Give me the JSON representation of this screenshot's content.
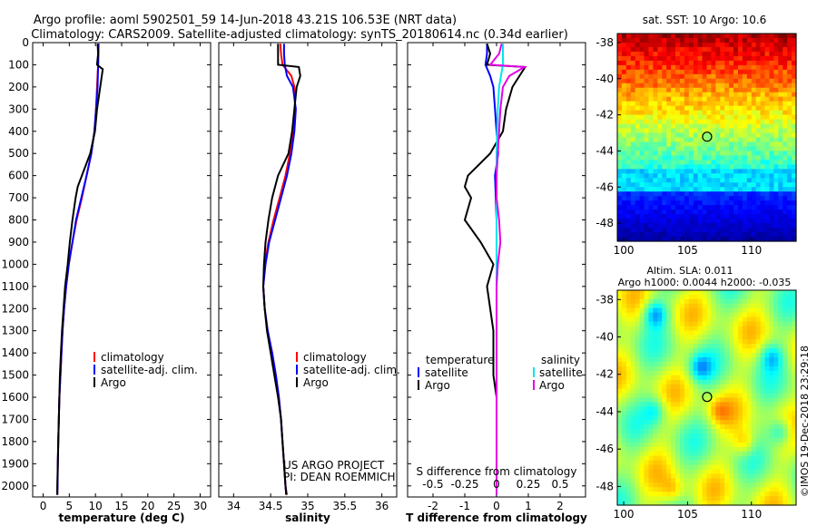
{
  "header": {
    "title_line1": "Argo profile: aoml 5902501_59 14-Jun-2018 43.21S 106.53E (NRT data)",
    "title_line2": "Climatology: CARS2009. Satellite-adjusted climatology: synTS_20180614.nc (0.34d earlier)"
  },
  "colors": {
    "climatology": "#ff0000",
    "satellite": "#0000ff",
    "argo": "#000000",
    "sat_salinity": "#00e5ee",
    "argo_salinity": "#e600e6"
  },
  "chart_data": [
    {
      "type": "line",
      "xlabel": "temperature (deg C)",
      "ylabel": "",
      "xlim": [
        -2,
        32
      ],
      "ylim": [
        2050,
        0
      ],
      "x_ticks": [
        "0",
        "5",
        "10",
        "15",
        "20",
        "25",
        "30"
      ],
      "y_ticks": [
        "0",
        "100",
        "200",
        "300",
        "400",
        "500",
        "600",
        "700",
        "800",
        "900",
        "1000",
        "1100",
        "1200",
        "1300",
        "1400",
        "1500",
        "1600",
        "1700",
        "1800",
        "1900",
        "2000"
      ],
      "legend": [
        "climatology",
        "satellite-adj. clim.",
        "Argo"
      ],
      "series": [
        {
          "name": "climatology",
          "depth": [
            5,
            100,
            200,
            300,
            400,
            500,
            600,
            700,
            800,
            900,
            1000,
            1100,
            1200,
            1300,
            1400,
            1500,
            1600,
            1700,
            1800,
            1900,
            2000,
            2040
          ],
          "values": [
            10.6,
            10.5,
            10.3,
            10.1,
            9.8,
            9.2,
            8.3,
            7.4,
            6.4,
            5.6,
            4.9,
            4.4,
            4.0,
            3.7,
            3.5,
            3.3,
            3.1,
            3.0,
            2.9,
            2.8,
            2.75,
            2.7
          ]
        },
        {
          "name": "satellite-adj. clim.",
          "depth": [
            5,
            100,
            200,
            300,
            400,
            500,
            600,
            700,
            800,
            900,
            1000,
            1100,
            1200,
            1300,
            1400,
            1500,
            1600,
            1700,
            1800,
            1900,
            2000,
            2040
          ],
          "values": [
            10.6,
            10.5,
            10.4,
            10.1,
            9.8,
            9.2,
            8.3,
            7.3,
            6.3,
            5.6,
            4.9,
            4.4,
            4.0,
            3.7,
            3.5,
            3.3,
            3.1,
            3.0,
            2.9,
            2.8,
            2.75,
            2.7
          ]
        },
        {
          "name": "Argo",
          "depth": [
            5,
            50,
            100,
            120,
            200,
            300,
            400,
            500,
            600,
            650,
            700,
            800,
            900,
            1000,
            1100,
            1200,
            1300,
            1400,
            1500,
            1600,
            1700,
            1800,
            1900,
            2000,
            2040
          ],
          "values": [
            10.4,
            10.5,
            10.3,
            11.4,
            10.9,
            10.3,
            9.9,
            9.0,
            7.4,
            6.6,
            6.2,
            5.6,
            5.1,
            4.7,
            4.2,
            3.9,
            3.6,
            3.4,
            3.2,
            3.1,
            3.0,
            2.9,
            2.8,
            2.7,
            2.7
          ]
        }
      ]
    },
    {
      "type": "line",
      "xlabel": "salinity",
      "ylabel": "",
      "xlim": [
        33.8,
        36.2
      ],
      "ylim": [
        2050,
        0
      ],
      "x_ticks": [
        "34",
        "34.5",
        "35",
        "35.5",
        "36"
      ],
      "legend": [
        "climatology",
        "satellite-adj. clim.",
        "Argo"
      ],
      "annotation": [
        "US ARGO PROJECT",
        "PI: DEAN ROEMMICH"
      ],
      "series": [
        {
          "name": "climatology",
          "depth": [
            5,
            50,
            100,
            150,
            200,
            300,
            400,
            500,
            600,
            700,
            800,
            900,
            1000,
            1100,
            1200,
            1300,
            1400,
            1500,
            1600,
            1700,
            1800,
            1900,
            2000,
            2040
          ],
          "values": [
            34.63,
            34.64,
            34.66,
            34.78,
            34.82,
            34.83,
            34.8,
            34.76,
            34.7,
            34.62,
            34.54,
            34.47,
            34.42,
            34.4,
            34.42,
            34.46,
            34.52,
            34.57,
            34.61,
            34.64,
            34.66,
            34.68,
            34.7,
            34.72
          ]
        },
        {
          "name": "satellite-adj. clim.",
          "depth": [
            5,
            50,
            100,
            150,
            200,
            300,
            400,
            500,
            600,
            700,
            800,
            900,
            1000,
            1100,
            1200,
            1300,
            1400,
            1500,
            1600,
            1700,
            1800,
            1900,
            2000,
            2040
          ],
          "values": [
            34.68,
            34.68,
            34.69,
            34.72,
            34.8,
            34.84,
            34.82,
            34.78,
            34.72,
            34.64,
            34.56,
            34.48,
            34.43,
            34.4,
            34.42,
            34.46,
            34.52,
            34.57,
            34.61,
            34.64,
            34.66,
            34.68,
            34.7,
            34.71
          ]
        },
        {
          "name": "Argo",
          "depth": [
            5,
            50,
            100,
            110,
            150,
            200,
            300,
            400,
            500,
            600,
            700,
            800,
            900,
            1000,
            1100,
            1200,
            1300,
            1400,
            1500,
            1600,
            1700,
            1800,
            1900,
            2000,
            2040
          ],
          "values": [
            34.6,
            34.6,
            34.6,
            34.88,
            34.9,
            34.85,
            34.82,
            34.79,
            34.74,
            34.6,
            34.52,
            34.47,
            34.43,
            34.41,
            34.4,
            34.42,
            34.45,
            34.5,
            34.55,
            34.6,
            34.64,
            34.66,
            34.68,
            34.7,
            34.71
          ]
        }
      ]
    },
    {
      "type": "line",
      "xlabel": "T difference from climatology",
      "xlabel_top": "S difference from climatology",
      "xlim": [
        -2.8,
        2.8
      ],
      "ylim": [
        2050,
        0
      ],
      "x_ticks": [
        "-2",
        "-1",
        "0",
        "1",
        "2"
      ],
      "x_ticks_top": [
        "-0.5",
        "-0.25",
        "0",
        "0.25",
        "0.5"
      ],
      "legend": [
        "temperature",
        "satellite",
        "Argo",
        "salinity",
        "satellite",
        "Argo"
      ],
      "series": [
        {
          "name": "satellite",
          "quantity": "temperature",
          "depth": [
            5,
            50,
            100,
            150,
            200,
            300,
            400,
            500,
            600,
            800,
            1000,
            1200,
            1500,
            1800,
            2040
          ],
          "values": [
            -0.3,
            -0.3,
            -0.35,
            -0.2,
            -0.1,
            -0.05,
            0,
            0.05,
            -0.05,
            0.0,
            0.0,
            0.0,
            0.0,
            0.0,
            0.0
          ]
        },
        {
          "name": "Argo",
          "quantity": "temperature",
          "depth": [
            5,
            50,
            100,
            110,
            200,
            300,
            400,
            500,
            600,
            650,
            700,
            800,
            900,
            1000,
            1100,
            1200,
            1300,
            1400,
            1500,
            1600,
            1800,
            2000,
            2040
          ],
          "values": [
            -0.3,
            -0.2,
            -0.3,
            0.9,
            0.5,
            0.3,
            0.2,
            -0.2,
            -0.9,
            -1.0,
            -0.8,
            -1.0,
            -0.5,
            -0.1,
            -0.3,
            -0.2,
            -0.1,
            -0.1,
            -0.1,
            0.0,
            0.0,
            0.0,
            0.0
          ]
        },
        {
          "name": "satellite",
          "quantity": "salinity",
          "depth": [
            5,
            100,
            200,
            300,
            500,
            700,
            1000,
            1500,
            2040
          ],
          "values": [
            0.05,
            0.05,
            0.02,
            0.01,
            0.0,
            0.0,
            0.0,
            0.0,
            0.0
          ]
        },
        {
          "name": "Argo",
          "quantity": "salinity",
          "depth": [
            5,
            50,
            100,
            110,
            150,
            200,
            300,
            400,
            500,
            600,
            700,
            800,
            900,
            1000,
            1100,
            1200,
            1400,
            1600,
            1800,
            2040
          ],
          "values": [
            0.04,
            0.02,
            -0.05,
            0.22,
            0.1,
            0.05,
            0.03,
            0.02,
            0.01,
            0.0,
            0.0,
            0.02,
            0.03,
            0.01,
            0.0,
            0.0,
            0.0,
            0.0,
            0.0,
            0.0
          ]
        }
      ]
    },
    {
      "type": "heatmap",
      "title": "sat. SST: 10 Argo: 10.6",
      "x_ticks": [
        "100",
        "105",
        "110"
      ],
      "y_ticks": [
        "-38",
        "-40",
        "-42",
        "-44",
        "-46",
        "-48"
      ],
      "xlim": [
        99.5,
        113.5
      ],
      "ylim": [
        -49,
        -37.5
      ],
      "marker": {
        "lon": 106.53,
        "lat": -43.21
      }
    },
    {
      "type": "heatmap",
      "title_line1": "Altim. SLA: 0.011",
      "title_line2": "Argo h1000: 0.0044 h2000: -0.035",
      "x_ticks": [
        "100",
        "105",
        "110"
      ],
      "y_ticks": [
        "-38",
        "-40",
        "-42",
        "-44",
        "-46",
        "-48"
      ],
      "xlim": [
        99.5,
        113.5
      ],
      "ylim": [
        -49,
        -37.5
      ],
      "marker": {
        "lon": 106.53,
        "lat": -43.21
      }
    }
  ],
  "credit": "©IMOS 19-Dec-2018 23:29:18"
}
